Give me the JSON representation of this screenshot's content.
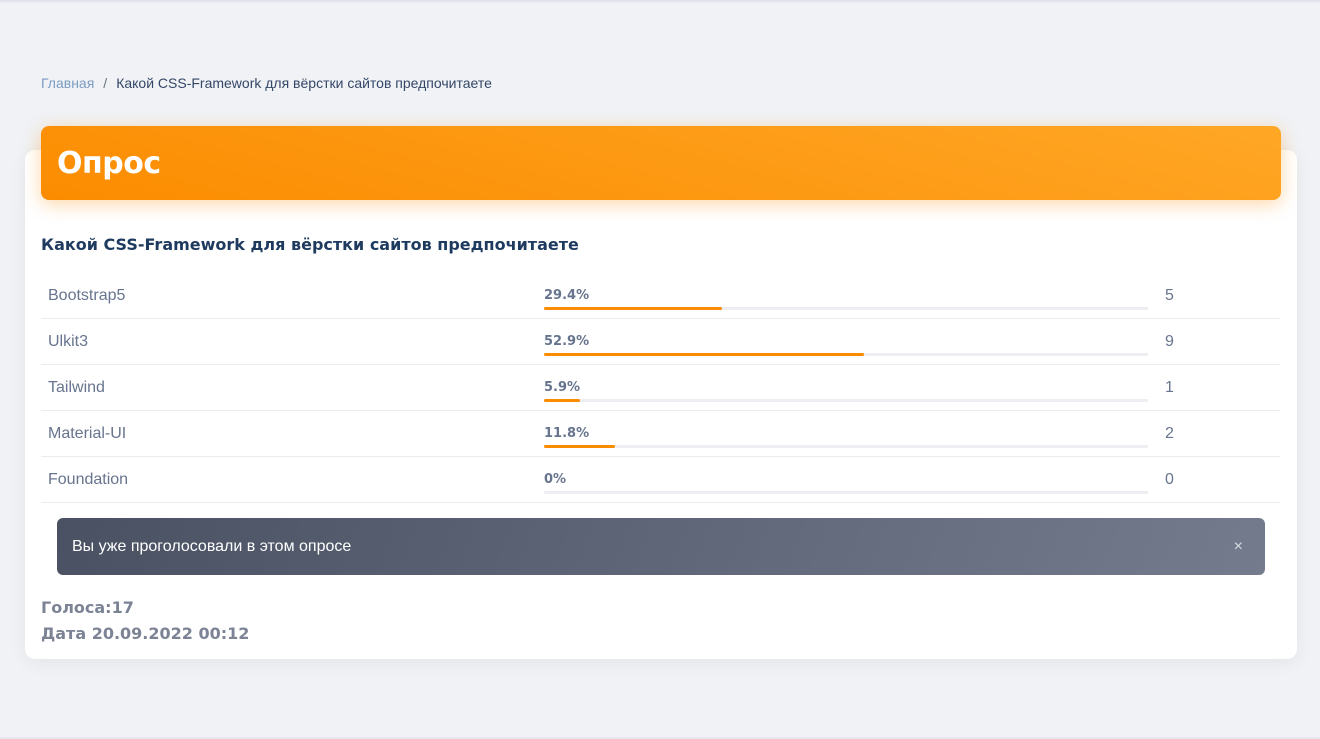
{
  "breadcrumb": {
    "home": "Главная",
    "separator": "/",
    "current": "Какой CSS-Framework для вёрстки сайтов предпочитаете"
  },
  "poll": {
    "header": "Опрос",
    "question": "Какой CSS-Framework для вёрстки сайтов предпочитаете",
    "options": [
      {
        "label": "Bootstrap5",
        "percent_text": "29.4%",
        "percent": 29.4,
        "votes": "5"
      },
      {
        "label": "Ulkit3",
        "percent_text": "52.9%",
        "percent": 52.9,
        "votes": "9"
      },
      {
        "label": "Tailwind",
        "percent_text": "5.9%",
        "percent": 5.9,
        "votes": "1"
      },
      {
        "label": "Material-UI",
        "percent_text": "11.8%",
        "percent": 11.8,
        "votes": "2"
      },
      {
        "label": "Foundation",
        "percent_text": "0%",
        "percent": 0,
        "votes": "0"
      }
    ],
    "alert": {
      "text": "Вы уже проголосовали в этом опросе",
      "close": "×"
    },
    "votes_total": "Голоса:17",
    "date": "Дата 20.09.2022 00:12"
  },
  "colors": {
    "accent": "#fb8c00",
    "header_gradient_start": "#ffa726",
    "alert_bg": "#495163"
  }
}
